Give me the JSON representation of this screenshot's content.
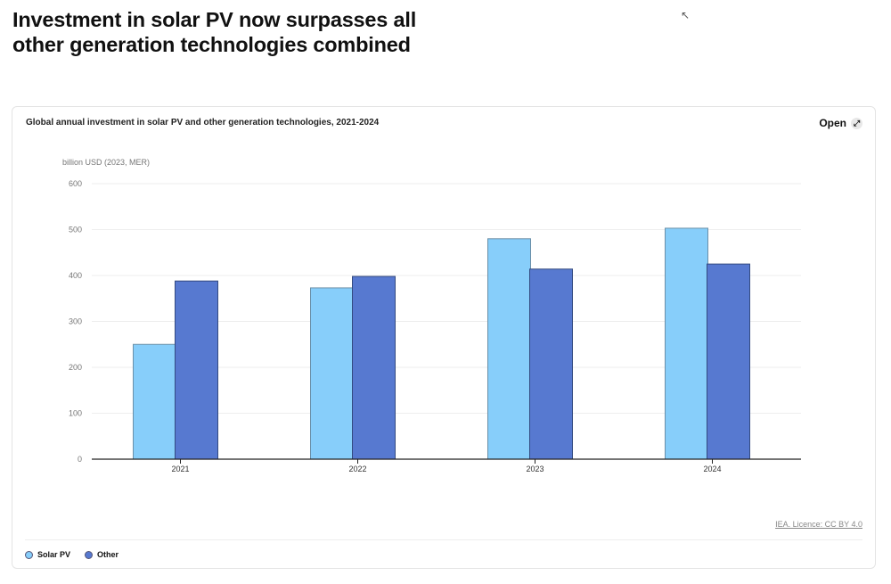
{
  "title": "Investment in solar PV now surpasses all other generation technologies combined",
  "card": {
    "subtitle": "Global annual investment in solar PV and other generation technologies, 2021-2024",
    "open_label": "Open",
    "open_icon": "expand-icon",
    "licence": "IEA. Licence: CC BY 4.0"
  },
  "chart_data": {
    "type": "bar",
    "title": "Global annual investment in solar PV and other generation technologies, 2021-2024",
    "ylabel": "billion USD (2023, MER)",
    "categories": [
      "2021",
      "2022",
      "2023",
      "2024"
    ],
    "yticks": [
      "0",
      "100",
      "200",
      "300",
      "400",
      "500",
      "600"
    ],
    "ylim": [
      0,
      600
    ],
    "grid": true,
    "legend_placement": "bottom-left",
    "series": [
      {
        "name": "Solar PV",
        "color": "#87cefa",
        "values": [
          250,
          373,
          480,
          503
        ]
      },
      {
        "name": "Other",
        "color": "#5779d0",
        "values": [
          388,
          398,
          414,
          425
        ]
      }
    ]
  }
}
